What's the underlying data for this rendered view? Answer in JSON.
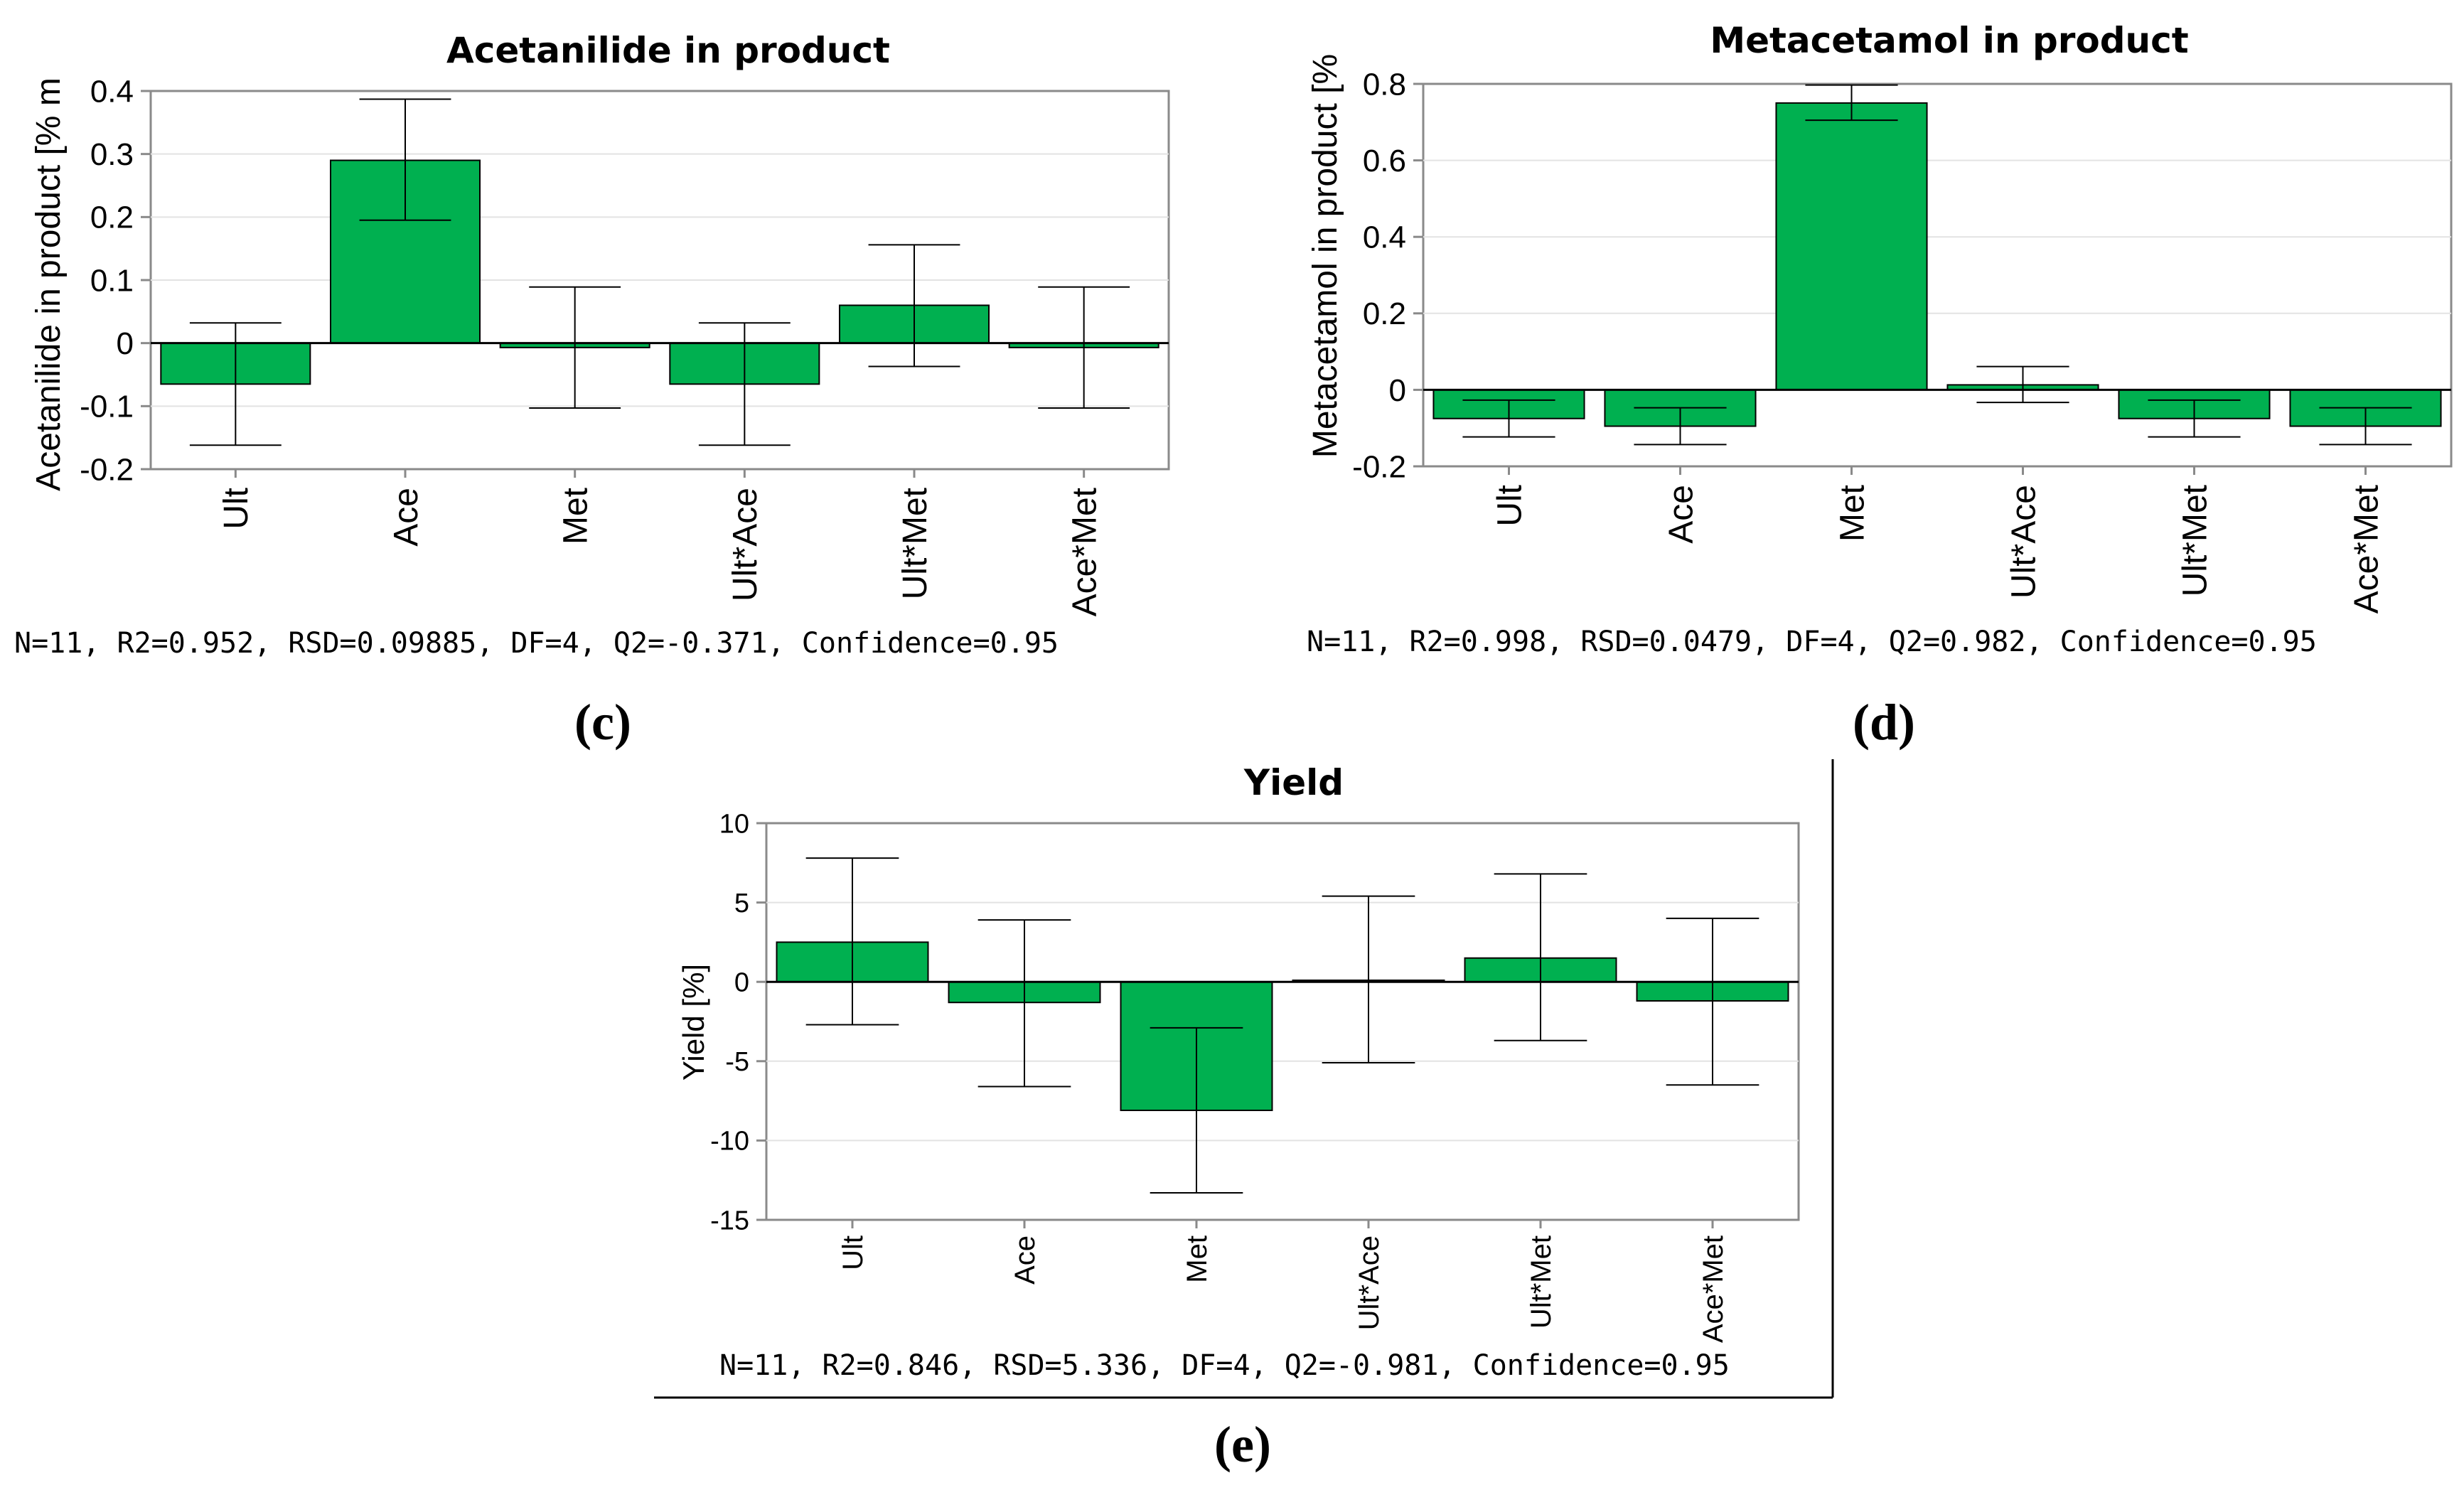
{
  "colors": {
    "bar": "#00b050",
    "grid": "#e3e3e3",
    "frame": "#8a8a8a"
  },
  "chart_data": [
    {
      "id": "acetanilide",
      "panel": "(c)",
      "type": "bar",
      "title": "Acetanilide in product",
      "ylabel": "Acetanilide in product [% m",
      "categories": [
        "Ult",
        "Ace",
        "Met",
        "Ult*Ace",
        "Ult*Met",
        "Ace*Met"
      ],
      "values": [
        -0.065,
        0.29,
        -0.007,
        -0.065,
        0.06,
        -0.007
      ],
      "error_low": [
        -0.162,
        0.195,
        -0.103,
        -0.162,
        -0.037,
        -0.103
      ],
      "error_high": [
        0.032,
        0.387,
        0.089,
        0.032,
        0.156,
        0.089
      ],
      "ylim": [
        -0.2,
        0.4
      ],
      "yticks": [
        -0.2,
        -0.1,
        0,
        0.1,
        0.2,
        0.3,
        0.4
      ],
      "ytick_labels": [
        "-0.2",
        "-0.1",
        "0",
        "0.1",
        "0.2",
        "0.3",
        "0.4"
      ],
      "grid": true,
      "stats": "N=11, R2=0.952, RSD=0.09885, DF=4, Q2=-0.371, Confidence=0.95"
    },
    {
      "id": "metacetamol",
      "panel": "(d)",
      "type": "bar",
      "title": "Metacetamol in product",
      "ylabel": "Metacetamol in product [%",
      "categories": [
        "Ult",
        "Ace",
        "Met",
        "Ult*Ace",
        "Ult*Met",
        "Ace*Met"
      ],
      "values": [
        -0.075,
        -0.095,
        0.75,
        0.013,
        -0.075,
        -0.095
      ],
      "error_low": [
        -0.123,
        -0.143,
        0.705,
        -0.033,
        -0.123,
        -0.143
      ],
      "error_high": [
        -0.027,
        -0.047,
        0.797,
        0.061,
        -0.027,
        -0.047
      ],
      "ylim": [
        -0.2,
        0.8
      ],
      "yticks": [
        -0.2,
        0,
        0.2,
        0.4,
        0.6,
        0.8
      ],
      "ytick_labels": [
        "-0.2",
        "0",
        "0.2",
        "0.4",
        "0.6",
        "0.8"
      ],
      "grid": true,
      "stats": "N=11, R2=0.998, RSD=0.0479, DF=4, Q2=0.982, Confidence=0.95"
    },
    {
      "id": "yield",
      "panel": "(e)",
      "type": "bar",
      "title": "Yield",
      "ylabel": "Yield [%]",
      "categories": [
        "Ult",
        "Ace",
        "Met",
        "Ult*Ace",
        "Ult*Met",
        "Ace*Met"
      ],
      "values": [
        2.5,
        -1.3,
        -8.1,
        0.1,
        1.5,
        -1.2
      ],
      "error_low": [
        -2.7,
        -6.6,
        -13.3,
        -5.1,
        -3.7,
        -6.5
      ],
      "error_high": [
        7.8,
        3.9,
        -2.9,
        5.4,
        6.8,
        4.0
      ],
      "ylim": [
        -15,
        10
      ],
      "yticks": [
        -15,
        -10,
        -5,
        0,
        5,
        10
      ],
      "ytick_labels": [
        "-15",
        "-10",
        "-5",
        "0",
        "5",
        "10"
      ],
      "grid": true,
      "stats": "N=11, R2=0.846, RSD=5.336, DF=4, Q2=-0.981, Confidence=0.95"
    }
  ]
}
